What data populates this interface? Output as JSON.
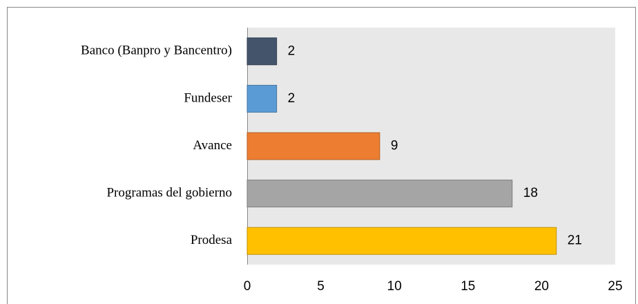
{
  "chart_data": {
    "type": "bar",
    "orientation": "horizontal",
    "categories": [
      "Banco (Banpro y Bancentro)",
      "Fundeser",
      "Avance",
      "Programas del gobierno",
      "Prodesa"
    ],
    "values": [
      2,
      2,
      9,
      18,
      21
    ],
    "colors": [
      "#44546a",
      "#5b9bd5",
      "#ed7d31",
      "#a5a5a5",
      "#ffc000"
    ],
    "xlim": [
      0,
      25
    ],
    "xticks": [
      0,
      5,
      10,
      15,
      20,
      25
    ],
    "grid": false
  }
}
